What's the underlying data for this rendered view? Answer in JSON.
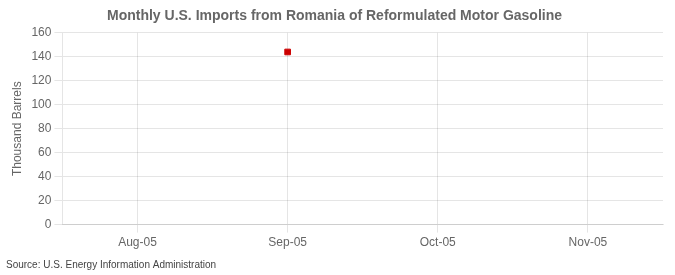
{
  "chart_data": {
    "type": "scatter",
    "title": "Monthly U.S. Imports from Romania of Reformulated Motor Gasoline",
    "y_label": "Thousand Barrels",
    "source": "Source: U.S. Energy Information Administration",
    "categories": [
      "Aug-05",
      "Sep-05",
      "Oct-05",
      "Nov-05"
    ],
    "values": [
      null,
      144,
      null,
      null
    ],
    "color": "#CC0000",
    "marker": "square",
    "ylim": [
      0,
      160
    ],
    "yticks": [
      0,
      20,
      40,
      60,
      80,
      100,
      120,
      140,
      160
    ],
    "grid": true
  }
}
